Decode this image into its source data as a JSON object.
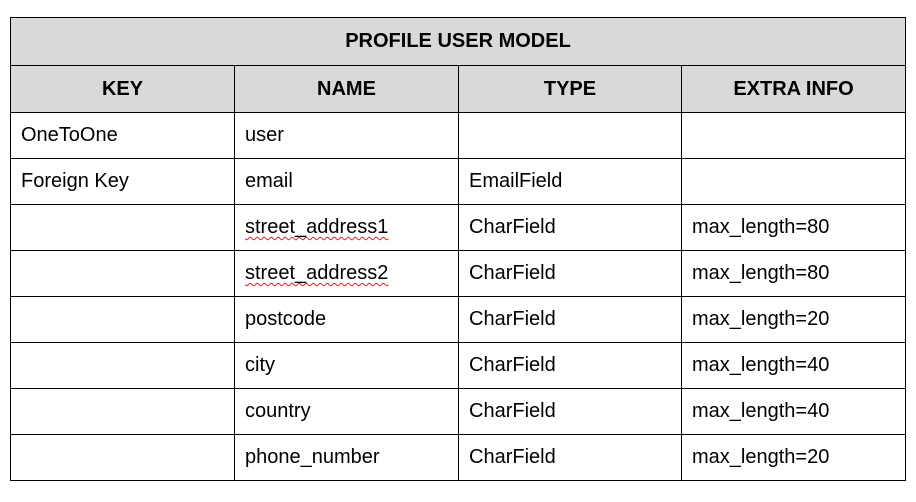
{
  "table": {
    "title": "PROFILE USER MODEL",
    "headers": [
      "KEY",
      "NAME",
      "TYPE",
      "EXTRA INFO"
    ],
    "rows": [
      {
        "key": "OneToOne",
        "name": "user",
        "type": "",
        "extra": ""
      },
      {
        "key": "Foreign Key",
        "name": "email",
        "type": "EmailField",
        "extra": ""
      },
      {
        "key": "",
        "name": "street_address1",
        "type": "CharField",
        "extra": "max_length=80"
      },
      {
        "key": "",
        "name": "street_address2",
        "type": "CharField",
        "extra": "max_length=80"
      },
      {
        "key": "",
        "name": "postcode",
        "type": "CharField",
        "extra": "max_length=20"
      },
      {
        "key": "",
        "name": "city",
        "type": "CharField",
        "extra": "max_length=40"
      },
      {
        "key": "",
        "name": "country",
        "type": "CharField",
        "extra": "max_length=40"
      },
      {
        "key": "",
        "name": "phone_number",
        "type": "CharField",
        "extra": "max_length=20"
      }
    ],
    "colors": {
      "header_bg": "#d9d9d9",
      "border": "#000000",
      "spellcheck_underline": "#e0201c"
    }
  }
}
